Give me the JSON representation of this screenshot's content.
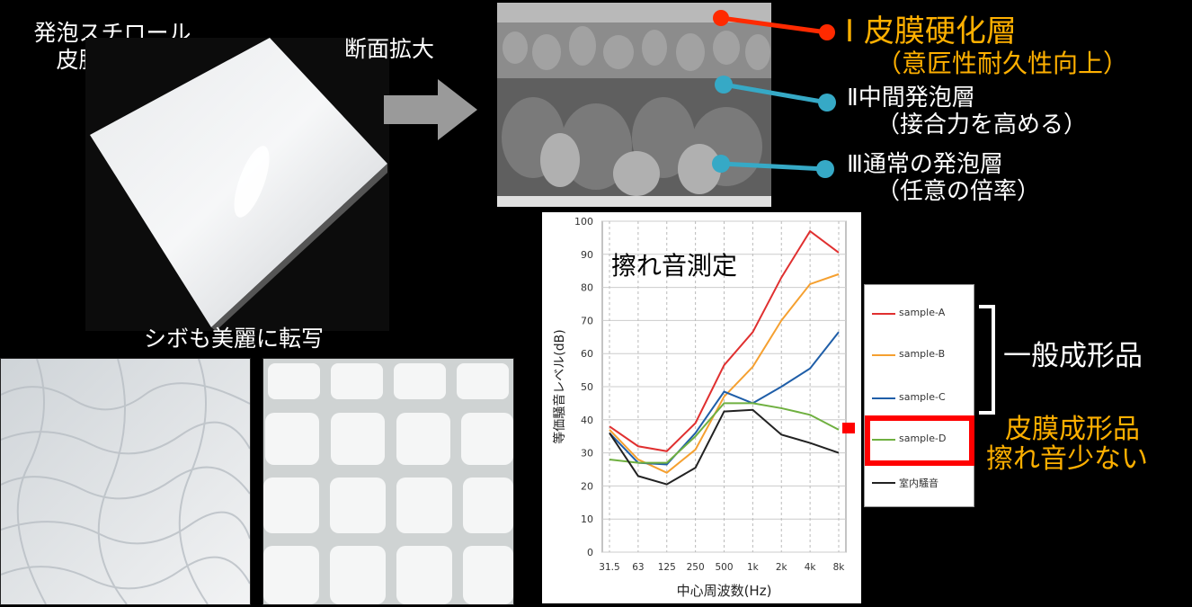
{
  "product": {
    "title_line1": "発泡スチロール",
    "title_line2": "皮膜成形品"
  },
  "section_label": "断面拡大",
  "shibo_caption": "シボも美麗に転写",
  "layers": [
    {
      "label": "Ⅰ 皮膜硬化層",
      "sub": "（意匠性耐久性向上）",
      "color": "#ff2a00",
      "text_color": "#ffb000"
    },
    {
      "label": "Ⅱ中間発泡層",
      "sub": "（接合力を高める）",
      "color": "#36a9c6",
      "text_color": "#ffffff"
    },
    {
      "label": "Ⅲ通常の発泡層",
      "sub": "（任意の倍率）",
      "color": "#36a9c6",
      "text_color": "#ffffff"
    }
  ],
  "annotations": {
    "general_label": "一般成形品",
    "film_label_line1": "皮膜成形品",
    "film_label_line2": "擦れ音少ない",
    "highlight_color": "#ff0000"
  },
  "chart_data": {
    "type": "line",
    "title": "擦れ音測定",
    "xlabel": "中心周波数(Hz)",
    "ylabel": "等価騒音レベル(dB)",
    "ylim": [
      0,
      100
    ],
    "yticks": [
      "0",
      "10",
      "20",
      "30",
      "40",
      "50",
      "60",
      "70",
      "80",
      "90",
      "100"
    ],
    "categories": [
      "31.5",
      "63",
      "125",
      "250",
      "500",
      "1k",
      "2k",
      "4k",
      "8k"
    ],
    "grid": true,
    "legend_position": "right",
    "series": [
      {
        "name": "sample-A",
        "color": "#e03030",
        "values": [
          38,
          32,
          30.5,
          39,
          56.5,
          66.5,
          83,
          97,
          90.5
        ]
      },
      {
        "name": "sample-B",
        "color": "#f5a030",
        "values": [
          37,
          28,
          24,
          31,
          47,
          56,
          70,
          81,
          84
        ]
      },
      {
        "name": "sample-C",
        "color": "#1f5ea8",
        "values": [
          36,
          27,
          26.5,
          36,
          48.5,
          45,
          50,
          55.5,
          66.5
        ]
      },
      {
        "name": "sample-D",
        "color": "#6fb040",
        "values": [
          28,
          27,
          27,
          35,
          45,
          45,
          43.5,
          41.5,
          37
        ]
      },
      {
        "name": "室内騒音",
        "color": "#222222",
        "values": [
          36,
          23,
          20.5,
          25.5,
          42.5,
          43,
          35.5,
          33,
          30
        ]
      }
    ]
  }
}
